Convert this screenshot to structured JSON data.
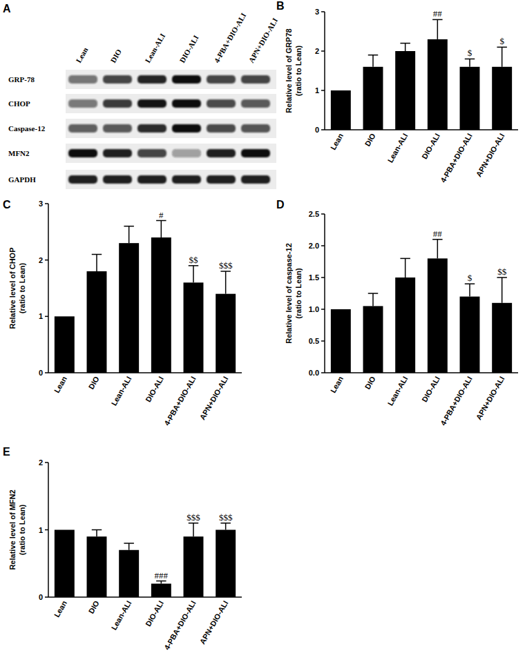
{
  "blot": {
    "panel": "A",
    "lanes": [
      "Lean",
      "DIO",
      "Lean-ALI",
      "DIO-ALI",
      "4-PBA+DIO-ALI",
      "APN+DIO-ALI"
    ],
    "proteins": [
      "GRP-78",
      "CHOP",
      "Caspase-12",
      "MFN2",
      "GAPDH"
    ]
  },
  "chart_data": [
    {
      "type": "bar",
      "panel": "B",
      "ylabel": [
        "Relative level of GRP78",
        "(ratio to Lean)"
      ],
      "categories": [
        "Lean",
        "DIO",
        "Lean-ALI",
        "DIO-ALI",
        "4-PBA+DIO-ALI",
        "APN+DIO-ALI"
      ],
      "values": [
        1,
        1.6,
        2.0,
        2.3,
        1.6,
        1.6
      ],
      "errors": [
        0,
        0.3,
        0.2,
        0.5,
        0.2,
        0.5
      ],
      "annotations": [
        null,
        null,
        null,
        "##",
        "$",
        "$"
      ],
      "color": "#000000",
      "ylim": [
        0,
        3
      ],
      "yticks": [
        0,
        1,
        2,
        3
      ],
      "grid": false
    },
    {
      "type": "bar",
      "panel": "C",
      "ylabel": [
        "Relative level of CHOP",
        "(ratio to Lean)"
      ],
      "categories": [
        "Lean",
        "DIO",
        "Lean-ALI",
        "DIO-ALI",
        "4-PBA+DIO-ALI",
        "APN+DIO-ALI"
      ],
      "values": [
        1,
        1.8,
        2.3,
        2.4,
        1.6,
        1.4
      ],
      "errors": [
        0,
        0.3,
        0.3,
        0.3,
        0.3,
        0.4
      ],
      "annotations": [
        null,
        null,
        null,
        "#",
        "$$",
        "$$$"
      ],
      "color": "#000000",
      "ylim": [
        0,
        3
      ],
      "yticks": [
        0,
        1,
        2,
        3
      ],
      "grid": false
    },
    {
      "type": "bar",
      "panel": "D",
      "ylabel": [
        "Relative level of caspase-12",
        "(ratio to Lean)"
      ],
      "categories": [
        "Lean",
        "DIO",
        "Lean-ALI",
        "DIO-ALI",
        "4-PBA+DIO-ALI",
        "APN+DIO-ALI"
      ],
      "values": [
        1,
        1.05,
        1.5,
        1.8,
        1.2,
        1.1
      ],
      "errors": [
        0,
        0.2,
        0.3,
        0.3,
        0.2,
        0.4
      ],
      "annotations": [
        null,
        null,
        null,
        "##",
        "$",
        "$$"
      ],
      "color": "#000000",
      "ylim": [
        0,
        2.5
      ],
      "yticks": [
        {
          "value": 0,
          "label": "0.0"
        },
        0.5,
        {
          "value": 1,
          "label": "1.0"
        },
        1.5,
        {
          "value": 2,
          "label": "2.0"
        },
        2.5
      ],
      "grid": false
    },
    {
      "type": "bar",
      "panel": "E",
      "ylabel": [
        "Relative level of MFN2",
        "(ratio to Lean)"
      ],
      "categories": [
        "Lean",
        "DIO",
        "Lean-ALI",
        "DIO-ALI",
        "4-PBA+DIO-ALI",
        "APN+DIO-ALI"
      ],
      "values": [
        1,
        0.9,
        0.7,
        0.2,
        0.9,
        1.0
      ],
      "errors": [
        0,
        0.1,
        0.1,
        0.04,
        0.2,
        0.1
      ],
      "annotations": [
        null,
        null,
        null,
        "###",
        "$$$",
        "$$$"
      ],
      "color": "#000000",
      "ylim": [
        0,
        2
      ],
      "yticks": [
        0,
        1,
        2
      ],
      "grid": false
    }
  ]
}
